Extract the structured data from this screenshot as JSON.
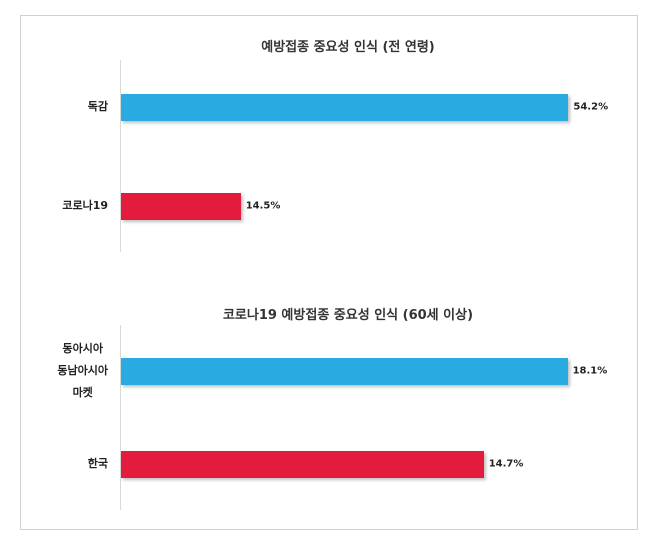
{
  "chart_data": [
    {
      "type": "bar",
      "orientation": "horizontal",
      "title": "예방접종 중요성 인식 (전 연령)",
      "categories": [
        "독감",
        "코로나19"
      ],
      "values": [
        54.2,
        14.5
      ],
      "value_labels": [
        "54.2%",
        "14.5%"
      ],
      "colors": [
        "#29abe2",
        "#e31b3c"
      ],
      "xlim": [
        0,
        55
      ]
    },
    {
      "type": "bar",
      "orientation": "horizontal",
      "title": "코로나19 예방접종 중요성 인식 (60세 이상)",
      "categories": [
        "동아시아\n동남아시아\n마켓",
        "한국"
      ],
      "values": [
        18.1,
        14.7
      ],
      "value_labels": [
        "18.1%",
        "14.7%"
      ],
      "colors": [
        "#29abe2",
        "#e31b3c"
      ],
      "xlim": [
        0,
        18.4
      ]
    }
  ]
}
